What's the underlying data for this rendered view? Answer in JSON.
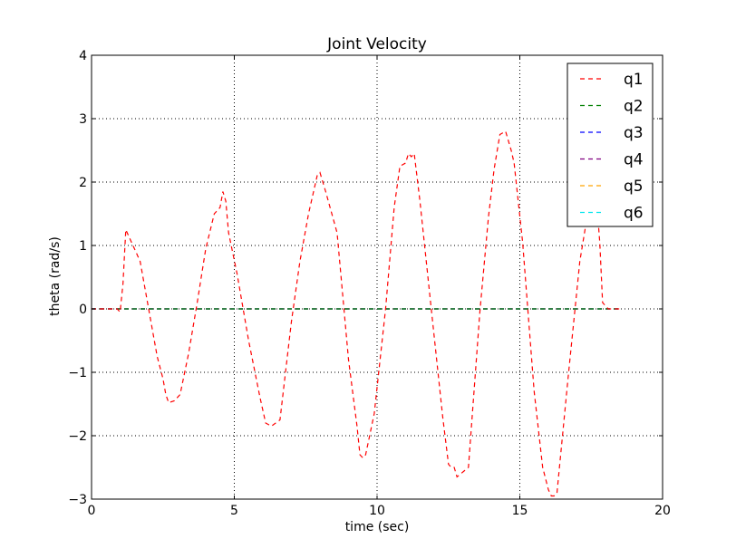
{
  "chart_data": {
    "type": "line",
    "title": "Joint Velocity",
    "xlabel": "time (sec)",
    "ylabel": "theta (rad/s)",
    "xlim": [
      0,
      20
    ],
    "ylim": [
      -3,
      4
    ],
    "xticks": [
      0,
      5,
      10,
      15,
      20
    ],
    "yticks": [
      -3,
      -2,
      -1,
      0,
      1,
      2,
      3,
      4
    ],
    "xtick_labels": [
      "0",
      "5",
      "10",
      "15",
      "20"
    ],
    "ytick_labels": [
      "−3",
      "−2",
      "−1",
      "0",
      "1",
      "2",
      "3",
      "4"
    ],
    "grid": true,
    "legend_position": "top-right",
    "series": [
      {
        "name": "q1",
        "color": "#ff0000",
        "x": [
          0.0,
          0.9,
          1.0,
          1.1,
          1.2,
          1.3,
          1.5,
          1.7,
          2.0,
          2.3,
          2.5,
          2.6,
          2.7,
          2.9,
          3.1,
          3.4,
          3.7,
          4.0,
          4.3,
          4.4,
          4.5,
          4.6,
          4.7,
          4.8,
          5.1,
          5.5,
          5.9,
          6.1,
          6.3,
          6.6,
          7.0,
          7.3,
          7.6,
          7.9,
          8.0,
          8.2,
          8.6,
          9.0,
          9.3,
          9.4,
          9.5,
          9.6,
          9.9,
          10.3,
          10.6,
          10.8,
          11.0,
          11.1,
          11.2,
          11.3,
          11.5,
          11.9,
          12.3,
          12.5,
          12.6,
          12.7,
          12.8,
          13.2,
          13.6,
          13.9,
          14.1,
          14.3,
          14.5,
          14.7,
          14.8,
          15.1,
          15.5,
          15.8,
          16.0,
          16.1,
          16.2,
          16.3,
          16.7,
          17.1,
          17.3,
          17.5,
          17.7,
          17.8,
          17.9,
          18.1,
          18.5
        ],
        "values": [
          0.0,
          0.0,
          -0.05,
          0.4,
          1.25,
          1.15,
          0.95,
          0.75,
          0.0,
          -0.75,
          -1.1,
          -1.35,
          -1.48,
          -1.45,
          -1.35,
          -0.7,
          0.1,
          0.95,
          1.5,
          1.55,
          1.6,
          1.85,
          1.7,
          1.2,
          0.55,
          -0.5,
          -1.4,
          -1.8,
          -1.85,
          -1.75,
          -0.2,
          0.75,
          1.5,
          2.1,
          2.15,
          1.85,
          1.2,
          -0.8,
          -1.85,
          -2.3,
          -2.35,
          -2.3,
          -1.65,
          0.0,
          1.6,
          2.25,
          2.3,
          2.45,
          2.4,
          2.45,
          1.7,
          0.0,
          -1.7,
          -2.45,
          -2.5,
          -2.5,
          -2.65,
          -2.5,
          -0.05,
          1.45,
          2.2,
          2.75,
          2.8,
          2.5,
          2.3,
          1.05,
          -1.3,
          -2.5,
          -2.85,
          -2.95,
          -2.95,
          -2.9,
          -1.05,
          0.75,
          1.3,
          1.6,
          1.65,
          1.05,
          0.1,
          0.0,
          0.0
        ]
      },
      {
        "name": "q2",
        "color": "#008000",
        "x": [
          0.0,
          18.5
        ],
        "values": [
          0.0,
          0.0
        ]
      },
      {
        "name": "q3",
        "color": "#0000ff",
        "x": [
          0.0,
          18.5
        ],
        "values": [
          0.0,
          0.0
        ]
      },
      {
        "name": "q4",
        "color": "#800080",
        "x": [
          0.0,
          18.5
        ],
        "values": [
          0.0,
          0.0
        ]
      },
      {
        "name": "q5",
        "color": "#ffa500",
        "x": [
          0.0,
          18.5
        ],
        "values": [
          0.0,
          0.0
        ]
      },
      {
        "name": "q6",
        "color": "#00e5ee",
        "x": [
          0.0,
          18.5
        ],
        "values": [
          0.0,
          0.0
        ]
      }
    ]
  }
}
